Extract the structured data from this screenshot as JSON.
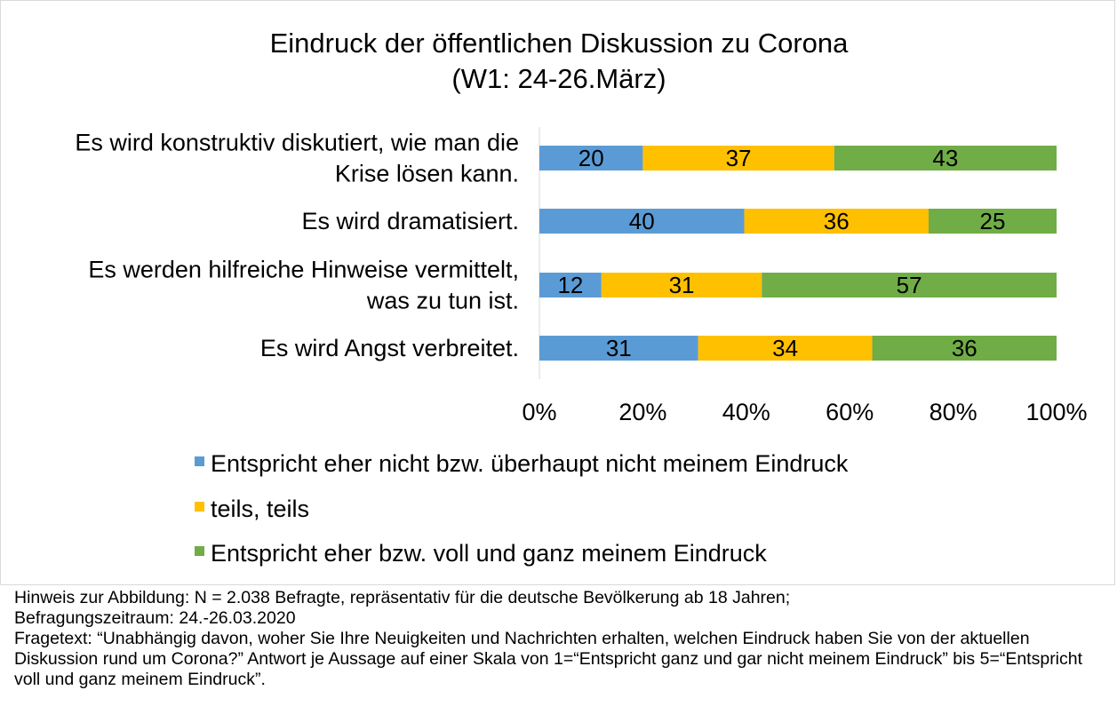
{
  "chart_data": {
    "type": "bar",
    "orientation": "horizontal",
    "stacked": true,
    "percent_scale": true,
    "title": "Eindruck der öffentlichen Diskussion zu Corona",
    "subtitle": "(W1: 24-26.März)",
    "categories": [
      [
        "Es wird konstruktiv diskutiert, wie man die",
        "Krise lösen kann."
      ],
      [
        "Es wird dramatisiert."
      ],
      [
        "Es werden hilfreiche Hinweise vermittelt,",
        "was zu tun ist."
      ],
      [
        "Es wird Angst verbreitet."
      ]
    ],
    "series": [
      {
        "name": "Entspricht eher nicht bzw. überhaupt nicht meinem Eindruck",
        "color": "#5b9bd5",
        "values": [
          20,
          40,
          12,
          31
        ]
      },
      {
        "name": "teils, teils",
        "color": "#ffc000",
        "values": [
          37,
          36,
          31,
          34
        ]
      },
      {
        "name": "Entspricht eher bzw. voll und ganz meinem Eindruck",
        "color": "#70ad47",
        "values": [
          43,
          25,
          57,
          36
        ]
      }
    ],
    "xlim": [
      0,
      100
    ],
    "xticks": [
      "0%",
      "20%",
      "40%",
      "60%",
      "80%",
      "100%"
    ],
    "grid": false,
    "legend_position": "bottom",
    "data_labels": true
  },
  "note": {
    "line1": "Hinweis zur Abbildung: N = 2.038 Befragte, repräsentativ für die deutsche Bevölkerung ab 18 Jahren;",
    "line2": "Befragungszeitraum: 24.-26.03.2020",
    "line3": "Fragetext: “Unabhängig davon, woher Sie Ihre Neuigkeiten und Nachrichten erhalten, welchen Eindruck haben Sie von der aktuellen Diskussion rund um Corona?” Antwort je Aussage auf einer Skala von 1=“Entspricht ganz und gar nicht meinem Eindruck” bis 5=“Entspricht voll und ganz meinem Eindruck”."
  }
}
